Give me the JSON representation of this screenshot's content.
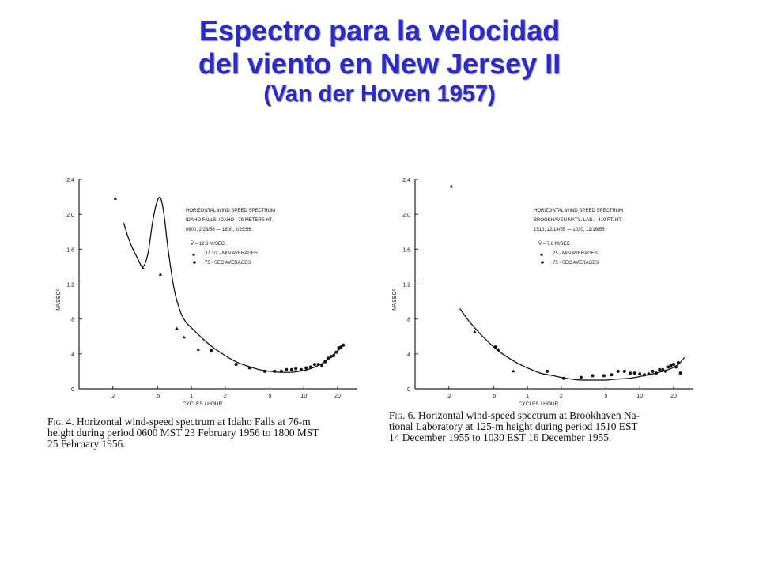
{
  "title": {
    "line1": "Espectro para la velocidad",
    "line2": "del viento en New Jersey II",
    "line3": "(Van der Hoven 1957)"
  },
  "chart_data": [
    {
      "type": "scatter",
      "xscale": "log",
      "xlabel": "CYCLES / HOUR",
      "ylabel": "M²/SEC²",
      "xlim": [
        0.1,
        30
      ],
      "ylim": [
        0,
        2.4
      ],
      "xticks": [
        "0.2",
        "0.5",
        "1",
        "2",
        "5",
        "10",
        "20"
      ],
      "xtick_labels": [
        ".2",
        ".5",
        "1",
        "2",
        "5",
        "10",
        "20"
      ],
      "yticks": [
        0,
        0.4,
        0.8,
        1.2,
        1.6,
        2.0,
        2.4
      ],
      "ytick_labels": [
        "0",
        ".4",
        ".8",
        "1.2",
        "1.6",
        "2.0",
        "2.4"
      ],
      "legend": {
        "line1": "HORIZONTAL WIND SPEED SPECTRUM",
        "line2": "IDAHO FALLS, IDAHO - 76 METERS HT.",
        "line3": "0600, 2/23/56  —  1800, 2/25/56",
        "line4": "V̄ = 12.8 M/SEC",
        "line5": "37 1/2 - MIN AVERAGES",
        "line6": "75 - SEC AVERAGES"
      },
      "series": [
        {
          "name": "37 1/2 - MIN AVERAGES",
          "marker": "triangle",
          "x": [
            0.21,
            0.37,
            0.53,
            0.74,
            0.86,
            1.15
          ],
          "y": [
            2.18,
            1.38,
            1.31,
            0.69,
            0.59,
            0.45
          ]
        },
        {
          "name": "75 - SEC AVERAGES",
          "marker": "dot",
          "x": [
            1.5,
            2.5,
            3.3,
            4.5,
            5.5,
            6.3,
            7.0,
            7.8,
            8.5,
            9.5,
            10.5,
            11.5,
            12.5,
            13.5,
            14.5,
            15.5,
            16.5,
            17.5,
            18.5,
            19.5,
            20.5,
            21.5,
            22.5
          ],
          "y": [
            0.44,
            0.28,
            0.24,
            0.2,
            0.2,
            0.2,
            0.22,
            0.22,
            0.23,
            0.22,
            0.24,
            0.25,
            0.28,
            0.28,
            0.27,
            0.31,
            0.35,
            0.37,
            0.38,
            0.42,
            0.47,
            0.48,
            0.5
          ]
        }
      ],
      "curve": {
        "x": [
          0.25,
          0.28,
          0.33,
          0.37,
          0.41,
          0.45,
          0.49,
          0.53,
          0.57,
          0.62,
          0.7,
          0.8,
          0.9,
          1.0,
          1.2,
          1.5,
          2.0,
          2.5,
          3.0,
          4.0,
          5.0,
          6.0,
          8.0,
          10.0,
          12.0,
          15.0,
          18.0,
          22.0
        ],
        "y": [
          1.9,
          1.7,
          1.5,
          1.4,
          1.55,
          1.9,
          2.13,
          2.19,
          2.0,
          1.6,
          1.15,
          0.88,
          0.76,
          0.7,
          0.6,
          0.49,
          0.38,
          0.31,
          0.27,
          0.22,
          0.2,
          0.19,
          0.19,
          0.21,
          0.24,
          0.3,
          0.38,
          0.48
        ]
      },
      "caption": {
        "label": "Fig. 4.",
        "line1": " Horizontal wind-speed spectrum at Idaho Falls at 76-m",
        "line2": "height during period 0600 MST 23 February 1956 to 1800 MST",
        "line3": "25 February 1956."
      }
    },
    {
      "type": "scatter",
      "xscale": "log",
      "xlabel": "CYCLES / HOUR",
      "ylabel": "M²/SEC²",
      "xlim": [
        0.1,
        30
      ],
      "ylim": [
        0,
        2.4
      ],
      "xticks": [
        "0.2",
        "0.5",
        "1",
        "2",
        "5",
        "10",
        "20"
      ],
      "xtick_labels": [
        ".2",
        ".5",
        "1",
        "2",
        "5",
        "10",
        "20"
      ],
      "yticks": [
        0,
        0.4,
        0.8,
        1.2,
        1.6,
        2.0,
        2.4
      ],
      "ytick_labels": [
        "0",
        ".4",
        ".8",
        "1.2",
        "1.6",
        "2.0",
        "2.4"
      ],
      "legend": {
        "line1": "HORIZONTAL WIND SPEED SPECTRUM",
        "line2": "BROOKHAVEN NAT'L. LAB. - 410 FT. HT.",
        "line3": "1510, 12/14/55  —  1030, 12/16/55",
        "line4": "V̄ = 7.6 M/SEC",
        "line5": "25 - MIN AVERAGES",
        "line6": "75 - SEC AVERAGES"
      },
      "series": [
        {
          "name": "25 - MIN AVERAGES",
          "marker": "triangle",
          "x": [
            0.21,
            0.34,
            0.55,
            0.75
          ],
          "y": [
            2.32,
            0.65,
            0.45,
            0.2
          ]
        },
        {
          "name": "75 - SEC AVERAGES",
          "marker": "dot",
          "x": [
            0.52,
            1.5,
            2.1,
            3.0,
            3.8,
            4.8,
            5.6,
            6.4,
            7.3,
            8.2,
            9.0,
            10.0,
            11.0,
            12.0,
            13.0,
            14.0,
            15.0,
            16.0,
            17.0,
            18.0,
            19.0,
            20.0,
            21.0,
            22.0,
            23.0
          ],
          "y": [
            0.48,
            0.2,
            0.12,
            0.13,
            0.15,
            0.15,
            0.16,
            0.2,
            0.2,
            0.18,
            0.18,
            0.17,
            0.16,
            0.17,
            0.2,
            0.18,
            0.22,
            0.22,
            0.2,
            0.25,
            0.27,
            0.28,
            0.25,
            0.3,
            0.18
          ]
        }
      ],
      "curve": {
        "x": [
          0.25,
          0.3,
          0.35,
          0.4,
          0.5,
          0.6,
          0.8,
          1.0,
          1.3,
          1.7,
          2.0,
          2.5,
          3.0,
          4.0,
          5.0,
          6.0,
          8.0,
          10.0,
          12.0,
          15.0,
          18.0,
          22.0,
          25.0
        ],
        "y": [
          0.92,
          0.78,
          0.68,
          0.6,
          0.48,
          0.4,
          0.3,
          0.24,
          0.18,
          0.15,
          0.13,
          0.11,
          0.1,
          0.1,
          0.1,
          0.11,
          0.12,
          0.14,
          0.16,
          0.19,
          0.22,
          0.28,
          0.36
        ]
      },
      "caption": {
        "label": "Fig. 6.",
        "line1": " Horizontal wind-speed spectrum at Brookhaven Na-",
        "line2": "tional Laboratory at 125-m height during period 1510 EST",
        "line3": "14 December 1955 to 1030 EST 16 December 1955."
      }
    }
  ]
}
